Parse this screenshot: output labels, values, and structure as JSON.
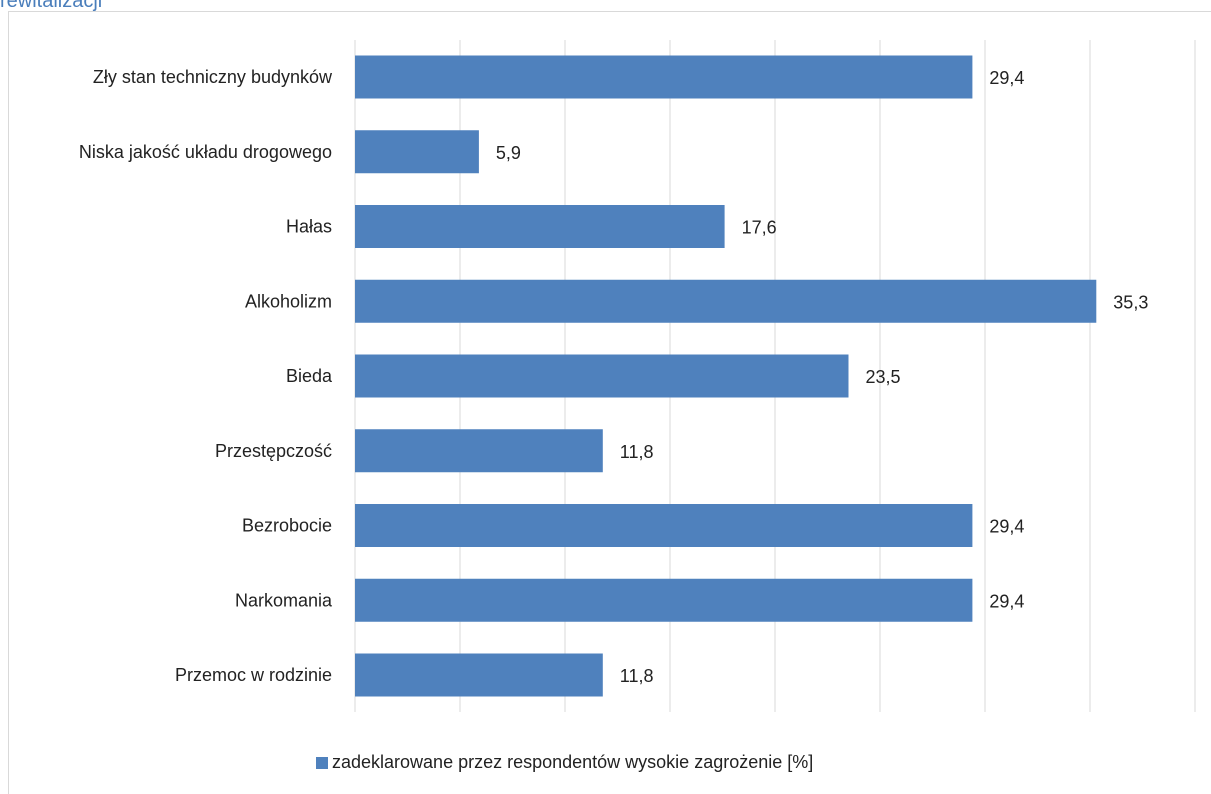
{
  "caption": "rewitalizacji",
  "colors": {
    "bar": "#4f81bd",
    "grid": "#d9d9d9"
  },
  "chart_data": {
    "type": "bar",
    "orientation": "horizontal",
    "categories": [
      "Zły stan techniczny budynków",
      "Niska jakość układu drogowego",
      "Hałas",
      "Alkoholizm",
      "Bieda",
      "Przestępczość",
      "Bezrobocie",
      "Narkomania",
      "Przemoc w rodzinie"
    ],
    "series": [
      {
        "name": "zadeklarowane przez respondentów wysokie zagrożenie [%]",
        "values": [
          29.4,
          5.9,
          17.6,
          35.3,
          23.5,
          11.8,
          29.4,
          29.4,
          11.8
        ],
        "value_labels": [
          "29,4",
          "5,9",
          "17,6",
          "35,3",
          "23,5",
          "11,8",
          "29,4",
          "29,4",
          "11,8"
        ]
      }
    ],
    "xlim": [
      0,
      40
    ],
    "grid": true,
    "legend_position": "bottom"
  }
}
